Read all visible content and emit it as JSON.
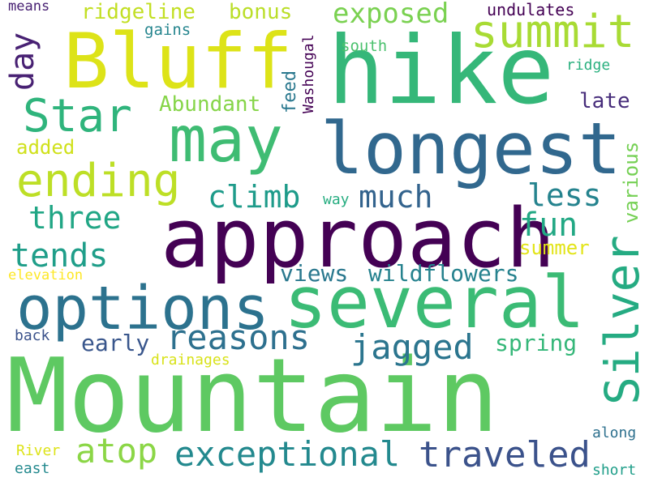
{
  "words": [
    {
      "text": "Mountain",
      "color": "#5ec962"
    },
    {
      "text": "approach",
      "color": "#440154"
    },
    {
      "text": "hike",
      "color": "#35b779"
    },
    {
      "text": "longest",
      "color": "#31688e"
    },
    {
      "text": "several",
      "color": "#3bbb75"
    },
    {
      "text": "Bluff",
      "color": "#dde318"
    },
    {
      "text": "options",
      "color": "#2c728e"
    },
    {
      "text": "may",
      "color": "#3fbc73"
    },
    {
      "text": "Silver",
      "color": "#25ab82"
    },
    {
      "text": "summit",
      "color": "#a8db34"
    },
    {
      "text": "ending",
      "color": "#bddf26"
    },
    {
      "text": "Star",
      "color": "#2fb47c"
    },
    {
      "text": "exceptional",
      "color": "#23898e"
    },
    {
      "text": "traveled",
      "color": "#3b528b"
    },
    {
      "text": "reasons",
      "color": "#2d708e"
    },
    {
      "text": "jagged",
      "color": "#2b758e"
    },
    {
      "text": "atop",
      "color": "#8bd646"
    },
    {
      "text": "much",
      "color": "#33638d"
    },
    {
      "text": "climb",
      "color": "#1e9b8a"
    },
    {
      "text": "less",
      "color": "#25838e"
    },
    {
      "text": "three",
      "color": "#21a685"
    },
    {
      "text": "tends",
      "color": "#1f9e89"
    },
    {
      "text": "fun",
      "color": "#22a884"
    },
    {
      "text": "exposed",
      "color": "#7ad151"
    },
    {
      "text": "views",
      "color": "#2a788e"
    },
    {
      "text": "wildflowers",
      "color": "#26828e"
    },
    {
      "text": "day",
      "color": "#482173"
    },
    {
      "text": "ridgeline",
      "color": "#c2df23"
    },
    {
      "text": "bonus",
      "color": "#bade28"
    },
    {
      "text": "Abundant",
      "color": "#86d549"
    },
    {
      "text": "spring",
      "color": "#35b779"
    },
    {
      "text": "early",
      "color": "#39568c"
    },
    {
      "text": "summer",
      "color": "#e2e418"
    },
    {
      "text": "late",
      "color": "#472d7b"
    },
    {
      "text": "added",
      "color": "#d0e11c"
    },
    {
      "text": "various",
      "color": "#75d054"
    },
    {
      "text": "feed",
      "color": "#2a788e"
    },
    {
      "text": "Washougal",
      "color": "#440154"
    },
    {
      "text": "undulates",
      "color": "#440154"
    },
    {
      "text": "south",
      "color": "#4ac16d"
    },
    {
      "text": "gains",
      "color": "#25858e"
    },
    {
      "text": "means",
      "color": "#482173"
    },
    {
      "text": "ridge",
      "color": "#2ab07f"
    },
    {
      "text": "way",
      "color": "#27ad81"
    },
    {
      "text": "elevation",
      "color": "#fde725"
    },
    {
      "text": "drainages",
      "color": "#d8e219"
    },
    {
      "text": "back",
      "color": "#3b528b"
    },
    {
      "text": "River",
      "color": "#dde318"
    },
    {
      "text": "east",
      "color": "#23898e"
    },
    {
      "text": "along",
      "color": "#2d708e"
    },
    {
      "text": "short",
      "color": "#1f9e89"
    }
  ]
}
